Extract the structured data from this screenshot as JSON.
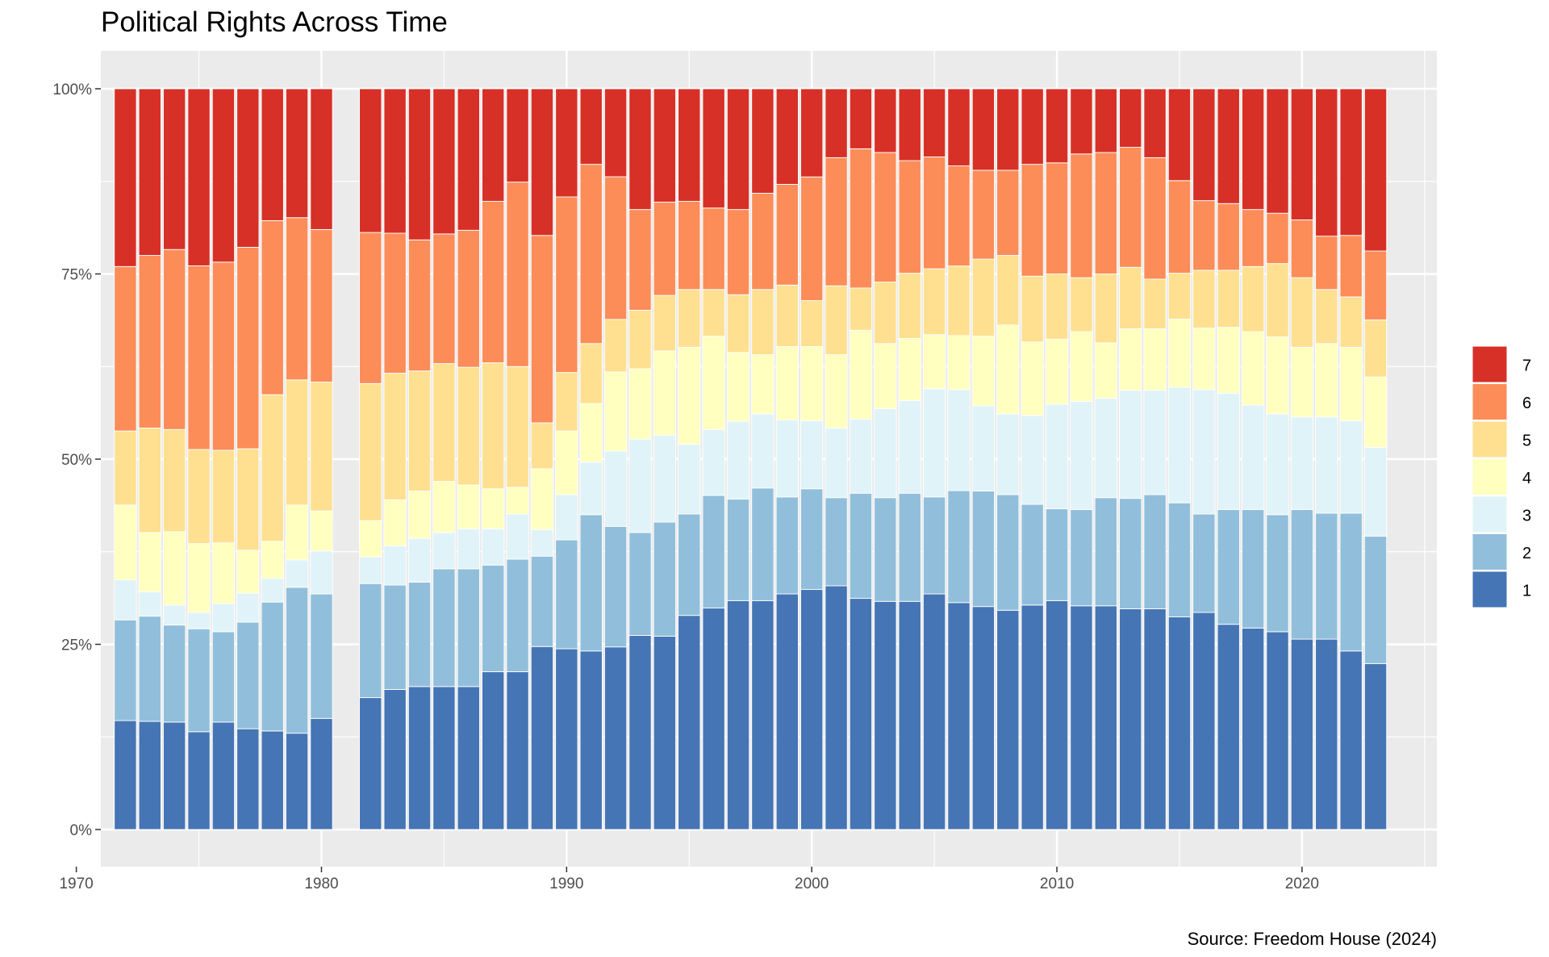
{
  "chart_data": {
    "type": "bar",
    "stacked": "percent",
    "title": "Political Rights Across Time",
    "caption": "Source: Freedom House (2024)",
    "xlabel": "",
    "ylabel": "",
    "xlim": [
      1971,
      2025.5
    ],
    "ylim": [
      0,
      1
    ],
    "x_ticks": [
      1970,
      1980,
      1990,
      2000,
      2010,
      2020
    ],
    "x_tick_labels": [
      "1970",
      "1980",
      "1990",
      "2000",
      "2010",
      "2020"
    ],
    "y_ticks": [
      0,
      0.25,
      0.5,
      0.75,
      1.0
    ],
    "y_tick_labels": [
      "0%",
      "25%",
      "50%",
      "75%",
      "100%"
    ],
    "grid": true,
    "legend_position": "right",
    "legend_labels": [
      "7",
      "6",
      "5",
      "4",
      "3",
      "2",
      "1"
    ],
    "categories": [
      1972,
      1973,
      1974,
      1975,
      1976,
      1977,
      1978,
      1979,
      1980,
      1982,
      1983,
      1984,
      1985,
      1986,
      1987,
      1988,
      1989,
      1990,
      1991,
      1992,
      1993,
      1994,
      1995,
      1996,
      1997,
      1998,
      1999,
      2000,
      2001,
      2002,
      2003,
      2004,
      2005,
      2006,
      2007,
      2008,
      2009,
      2010,
      2011,
      2012,
      2013,
      2014,
      2015,
      2016,
      2017,
      2018,
      2019,
      2020,
      2021,
      2022,
      2023
    ],
    "series": [
      {
        "name": "1",
        "color": "#4575b4",
        "values": [
          0.147,
          0.146,
          0.145,
          0.132,
          0.145,
          0.136,
          0.133,
          0.13,
          0.15,
          0.178,
          0.189,
          0.193,
          0.193,
          0.193,
          0.213,
          0.213,
          0.247,
          0.244,
          0.241,
          0.247,
          0.262,
          0.261,
          0.289,
          0.299,
          0.309,
          0.309,
          0.318,
          0.324,
          0.329,
          0.312,
          0.308,
          0.308,
          0.318,
          0.306,
          0.301,
          0.296,
          0.303,
          0.309,
          0.302,
          0.302,
          0.298,
          0.298,
          0.287,
          0.293,
          0.277,
          0.272,
          0.267,
          0.257,
          0.257,
          0.241,
          0.224
        ]
      },
      {
        "name": "2",
        "color": "#91bfdb",
        "values": [
          0.136,
          0.142,
          0.131,
          0.139,
          0.122,
          0.144,
          0.174,
          0.197,
          0.168,
          0.154,
          0.141,
          0.141,
          0.159,
          0.159,
          0.144,
          0.152,
          0.122,
          0.147,
          0.184,
          0.163,
          0.139,
          0.154,
          0.137,
          0.152,
          0.137,
          0.152,
          0.131,
          0.136,
          0.119,
          0.142,
          0.14,
          0.146,
          0.131,
          0.151,
          0.156,
          0.156,
          0.136,
          0.124,
          0.13,
          0.146,
          0.149,
          0.154,
          0.154,
          0.133,
          0.155,
          0.16,
          0.158,
          0.175,
          0.17,
          0.186,
          0.172
        ]
      },
      {
        "name": "3",
        "color": "#e0f3f8",
        "values": [
          0.054,
          0.033,
          0.027,
          0.022,
          0.038,
          0.039,
          0.032,
          0.037,
          0.058,
          0.036,
          0.053,
          0.059,
          0.049,
          0.054,
          0.049,
          0.061,
          0.036,
          0.061,
          0.071,
          0.102,
          0.126,
          0.117,
          0.094,
          0.089,
          0.105,
          0.1,
          0.104,
          0.092,
          0.094,
          0.1,
          0.12,
          0.125,
          0.146,
          0.136,
          0.115,
          0.109,
          0.12,
          0.141,
          0.146,
          0.134,
          0.146,
          0.141,
          0.156,
          0.168,
          0.157,
          0.141,
          0.136,
          0.125,
          0.13,
          0.125,
          0.12
        ]
      },
      {
        "name": "4",
        "color": "#ffffbf",
        "values": [
          0.101,
          0.08,
          0.099,
          0.093,
          0.082,
          0.058,
          0.05,
          0.074,
          0.054,
          0.049,
          0.062,
          0.064,
          0.069,
          0.059,
          0.054,
          0.036,
          0.082,
          0.086,
          0.079,
          0.107,
          0.095,
          0.114,
          0.131,
          0.126,
          0.093,
          0.08,
          0.099,
          0.1,
          0.099,
          0.12,
          0.088,
          0.084,
          0.073,
          0.073,
          0.094,
          0.12,
          0.099,
          0.088,
          0.094,
          0.075,
          0.083,
          0.083,
          0.092,
          0.083,
          0.089,
          0.099,
          0.104,
          0.094,
          0.099,
          0.099,
          0.095
        ]
      },
      {
        "name": "5",
        "color": "#fee090",
        "values": [
          0.1,
          0.141,
          0.138,
          0.127,
          0.125,
          0.137,
          0.198,
          0.169,
          0.174,
          0.185,
          0.171,
          0.162,
          0.159,
          0.159,
          0.17,
          0.163,
          0.062,
          0.079,
          0.081,
          0.071,
          0.079,
          0.075,
          0.078,
          0.063,
          0.078,
          0.088,
          0.083,
          0.062,
          0.093,
          0.057,
          0.083,
          0.088,
          0.089,
          0.094,
          0.104,
          0.094,
          0.089,
          0.088,
          0.073,
          0.093,
          0.083,
          0.067,
          0.062,
          0.078,
          0.077,
          0.088,
          0.099,
          0.094,
          0.073,
          0.068,
          0.077
        ]
      },
      {
        "name": "6",
        "color": "#fc8d59",
        "values": [
          0.222,
          0.233,
          0.243,
          0.248,
          0.254,
          0.272,
          0.235,
          0.219,
          0.206,
          0.204,
          0.189,
          0.177,
          0.175,
          0.185,
          0.218,
          0.249,
          0.253,
          0.237,
          0.242,
          0.193,
          0.136,
          0.126,
          0.119,
          0.11,
          0.115,
          0.13,
          0.136,
          0.167,
          0.173,
          0.188,
          0.175,
          0.152,
          0.151,
          0.135,
          0.12,
          0.115,
          0.151,
          0.15,
          0.167,
          0.164,
          0.162,
          0.164,
          0.125,
          0.094,
          0.09,
          0.077,
          0.068,
          0.078,
          0.072,
          0.083,
          0.093
        ]
      },
      {
        "name": "7",
        "color": "#d73027",
        "values": [
          0.24,
          0.225,
          0.217,
          0.239,
          0.234,
          0.214,
          0.178,
          0.174,
          0.19,
          0.194,
          0.195,
          0.204,
          0.196,
          0.191,
          0.152,
          0.126,
          0.198,
          0.146,
          0.102,
          0.119,
          0.163,
          0.153,
          0.152,
          0.161,
          0.163,
          0.141,
          0.129,
          0.119,
          0.093,
          0.081,
          0.086,
          0.097,
          0.092,
          0.104,
          0.11,
          0.11,
          0.102,
          0.1,
          0.088,
          0.086,
          0.079,
          0.093,
          0.124,
          0.151,
          0.155,
          0.163,
          0.168,
          0.177,
          0.199,
          0.198,
          0.219
        ]
      }
    ]
  }
}
